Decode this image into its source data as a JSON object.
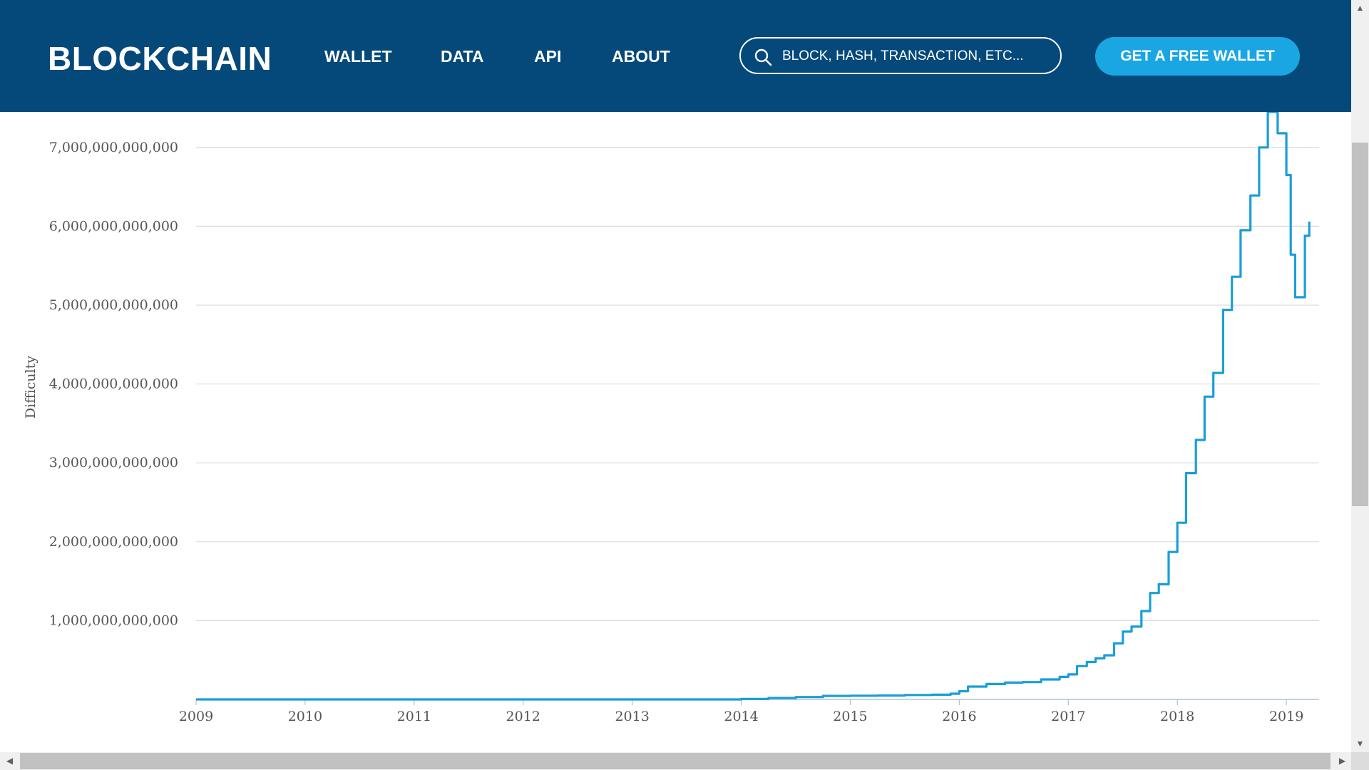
{
  "header": {
    "logo": "BLOCKCHAIN",
    "nav": [
      {
        "label": "WALLET"
      },
      {
        "label": "DATA"
      },
      {
        "label": "API"
      },
      {
        "label": "ABOUT"
      }
    ],
    "search_placeholder": "BLOCK, HASH, TRANSACTION, ETC...",
    "cta_label": "GET A FREE WALLET"
  },
  "colors": {
    "header_bg": "#04497a",
    "accent": "#1aa6e3",
    "line": "#1a9ed9",
    "grid": "#d8dde0"
  },
  "chart_data": {
    "type": "line",
    "title": "",
    "xlabel": "",
    "ylabel": "Difficulty",
    "x_ticks": [
      "2009",
      "2010",
      "2011",
      "2012",
      "2013",
      "2014",
      "2015",
      "2016",
      "2017",
      "2018",
      "2019"
    ],
    "y_ticks": [
      "1,000,000,000,000",
      "2,000,000,000,000",
      "3,000,000,000,000",
      "4,000,000,000,000",
      "5,000,000,000,000",
      "6,000,000,000,000",
      "7,000,000,000,000"
    ],
    "ylim": [
      0,
      7450000000000
    ],
    "xlim": [
      2009.0,
      2019.3
    ],
    "grid": true,
    "legend": "none",
    "series": [
      {
        "x": [
          2009.0,
          2010.0,
          2011.0,
          2012.0,
          2013.0,
          2013.5,
          2014.0,
          2014.25,
          2014.5,
          2014.75,
          2015.0,
          2015.25,
          2015.5,
          2015.75,
          2015.92,
          2016.0,
          2016.08,
          2016.25,
          2016.42,
          2016.58,
          2016.75,
          2016.92,
          2017.0,
          2017.08,
          2017.17,
          2017.25,
          2017.33,
          2017.42,
          2017.5,
          2017.58,
          2017.67,
          2017.75,
          2017.83,
          2017.92,
          2018.0,
          2018.08,
          2018.17,
          2018.25,
          2018.33,
          2018.42,
          2018.5,
          2018.58,
          2018.67,
          2018.75,
          2018.83,
          2018.92,
          2019.0,
          2019.04,
          2019.08,
          2019.17,
          2019.21
        ],
        "y": [
          0,
          0,
          0,
          0,
          0,
          0,
          5000000000,
          18000000000,
          30000000000,
          44000000000,
          47000000000,
          50000000000,
          56000000000,
          60000000000,
          72000000000,
          104000000000,
          163000000000,
          195000000000,
          213000000000,
          220000000000,
          253000000000,
          286000000000,
          317000000000,
          422000000000,
          475000000000,
          521000000000,
          560000000000,
          711000000000,
          860000000000,
          923000000000,
          1120000000000,
          1350000000000,
          1460000000000,
          1870000000000,
          2240000000000,
          2870000000000,
          3290000000000,
          3840000000000,
          4140000000000,
          4940000000000,
          5360000000000,
          5950000000000,
          6390000000000,
          7000000000000,
          7450000000000,
          7180000000000,
          6650000000000,
          5640000000000,
          5100000000000,
          5880000000000,
          6060000000000
        ]
      }
    ]
  }
}
